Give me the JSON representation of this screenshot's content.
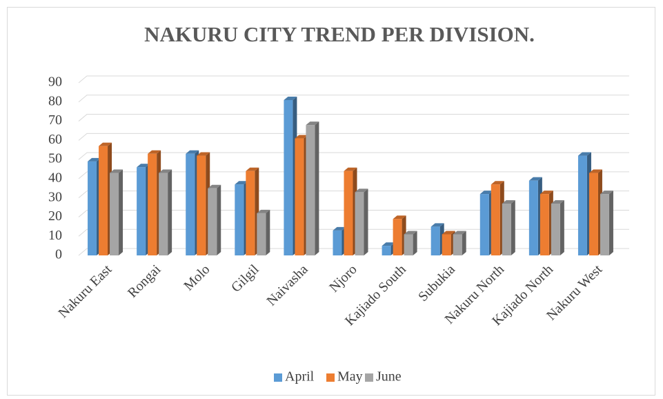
{
  "chart_data": {
    "type": "bar",
    "title": "NAKURU CITY TREND PER DIVISION.",
    "categories": [
      "Nakuru East",
      "Rongai",
      "Molo",
      "Gilgil",
      "Naivasha",
      "Njoro",
      "Kajiado South",
      "Subukia",
      "Nakuru North",
      "Kajiado North",
      "Nakuru West"
    ],
    "series": [
      {
        "name": "April",
        "color": "#5b9bd5",
        "values": [
          49,
          46,
          53,
          37,
          81,
          13,
          5,
          15,
          32,
          39,
          52
        ]
      },
      {
        "name": "May",
        "color": "#ed7d31",
        "values": [
          57,
          53,
          52,
          44,
          61,
          44,
          19,
          11,
          37,
          32,
          43
        ]
      },
      {
        "name": "June",
        "color": "#a5a5a5",
        "values": [
          43,
          43,
          35,
          22,
          68,
          33,
          11,
          11,
          27,
          27,
          32
        ]
      }
    ],
    "ylim": [
      0,
      90
    ],
    "yticks": [
      0,
      10,
      20,
      30,
      40,
      50,
      60,
      70,
      80,
      90
    ],
    "grid": true,
    "legend": "bottom"
  }
}
